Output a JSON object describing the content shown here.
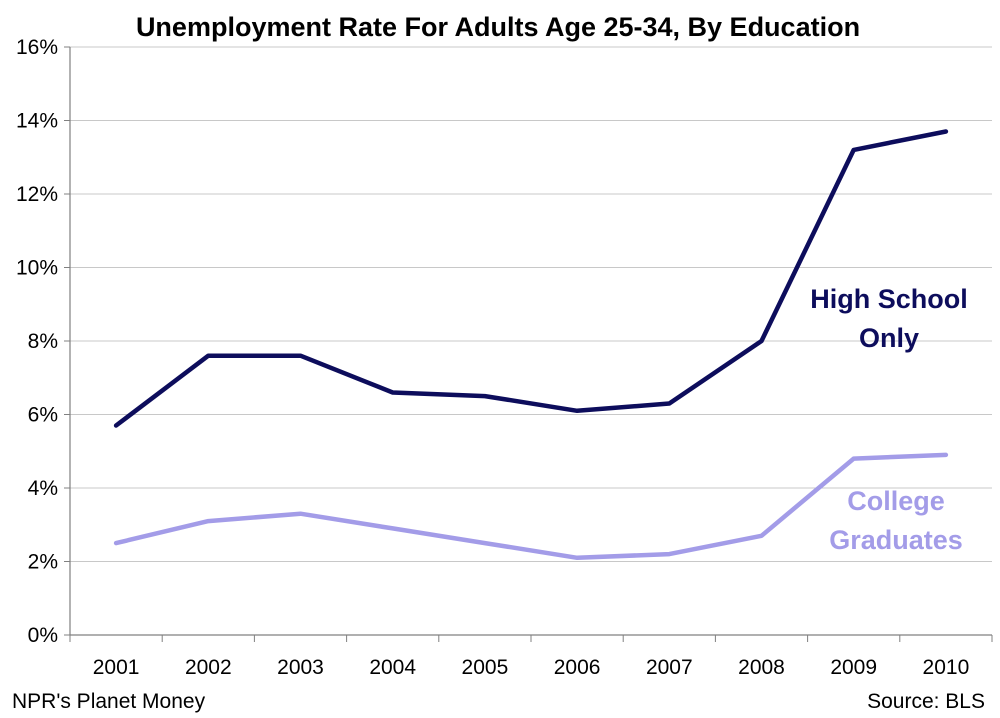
{
  "chart_data": {
    "type": "line",
    "title": "Unemployment Rate For Adults Age 25-34, By Education",
    "xlabel": "",
    "ylabel": "",
    "ylim": [
      0,
      16
    ],
    "yticks": [
      "0%",
      "2%",
      "4%",
      "6%",
      "8%",
      "10%",
      "12%",
      "14%",
      "16%"
    ],
    "grid": true,
    "categories": [
      "2001",
      "2002",
      "2003",
      "2004",
      "2005",
      "2006",
      "2007",
      "2008",
      "2009",
      "2010"
    ],
    "series": [
      {
        "name": "High School Only",
        "label_lines": [
          "High School",
          "Only"
        ],
        "color": "#0d0d5c",
        "values": [
          5.7,
          7.6,
          7.6,
          6.6,
          6.5,
          6.1,
          6.3,
          8.0,
          13.2,
          13.7
        ]
      },
      {
        "name": "College Graduates",
        "label_lines": [
          "College",
          "Graduates"
        ],
        "color": "#a39ce8",
        "values": [
          2.5,
          3.1,
          3.3,
          2.9,
          2.5,
          2.1,
          2.2,
          2.7,
          4.8,
          4.9
        ]
      }
    ]
  },
  "footer": {
    "left": "NPR's Planet Money",
    "right": "Source: BLS"
  }
}
